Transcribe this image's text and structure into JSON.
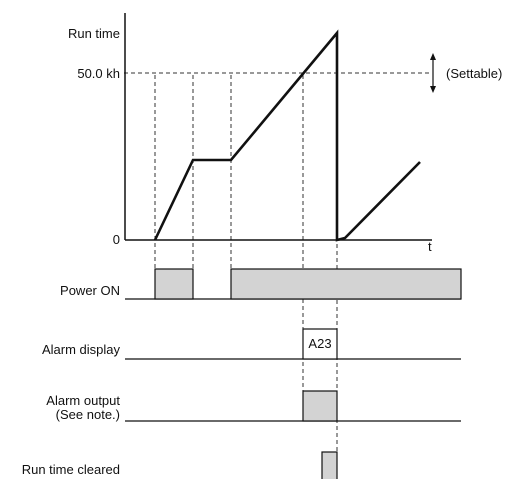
{
  "labels": {
    "y_axis": "Run time",
    "threshold": "50.0 kh",
    "origin": "0",
    "x_axis": "t",
    "settable": "(Settable)",
    "power_on": "Power ON",
    "alarm_display": "Alarm display",
    "alarm_code": "A23",
    "alarm_output_line1": "Alarm output",
    "alarm_output_line2": "(See note.)",
    "run_time_cleared": "Run time cleared"
  },
  "colors": {
    "line": "#111111",
    "pulse_fill": "#d3d3d3",
    "dashed_guides": "#333333"
  }
}
